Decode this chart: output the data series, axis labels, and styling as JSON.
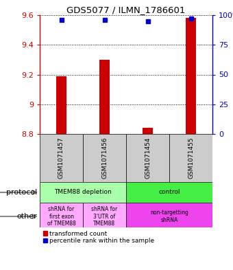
{
  "title": "GDS5077 / ILMN_1786601",
  "samples": [
    "GSM1071457",
    "GSM1071456",
    "GSM1071454",
    "GSM1071455"
  ],
  "transformed_counts": [
    9.19,
    9.3,
    8.84,
    9.58
  ],
  "percentile_ranks": [
    96,
    96,
    95,
    97
  ],
  "ylim": [
    8.8,
    9.6
  ],
  "y_ticks": [
    8.8,
    9.0,
    9.2,
    9.4,
    9.6
  ],
  "y2_ticks": [
    0,
    25,
    50,
    75,
    100
  ],
  "y2_tick_labels": [
    "0",
    "25",
    "50",
    "75",
    "100%"
  ],
  "bar_color": "#cc0000",
  "dot_color": "#0000cc",
  "protocol_labels": [
    "TMEM88 depletion",
    "control"
  ],
  "protocol_colors": [
    "#aaffaa",
    "#44ee44"
  ],
  "other_labels": [
    "shRNA for\nfirst exon\nof TMEM88",
    "shRNA for\n3'UTR of\nTMEM88",
    "non-targetting\nshRNA"
  ],
  "other_colors": [
    "#ffaaff",
    "#ffaaff",
    "#ee44ee"
  ],
  "sample_bg_color": "#cccccc",
  "legend_red_label": "transformed count",
  "legend_blue_label": "percentile rank within the sample",
  "bar_width": 0.25
}
